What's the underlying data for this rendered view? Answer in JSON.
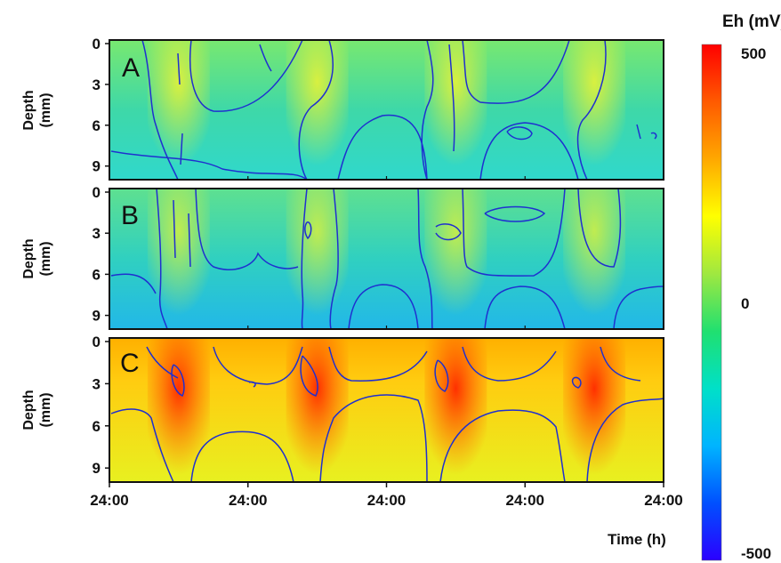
{
  "chart_data": {
    "type": "heatmap",
    "panels": [
      {
        "label": "A",
        "ylabel_line1": "Depth",
        "ylabel_line2": "(mm)",
        "ytick_labels": [
          "0",
          "3",
          "6",
          "9"
        ],
        "ylim": [
          0,
          10
        ],
        "approx_eh_range_mV": [
          -100,
          120
        ],
        "high_band_times_h": [
          12,
          36,
          60,
          84
        ],
        "contour_levels_mV": [
          0,
          50
        ]
      },
      {
        "label": "B",
        "ylabel_line1": "Depth",
        "ylabel_line2": "(mm)",
        "ytick_labels": [
          "0",
          "3",
          "6",
          "9"
        ],
        "ylim": [
          0,
          10
        ],
        "approx_eh_range_mV": [
          -150,
          80
        ],
        "high_band_times_h": [
          12,
          36,
          60,
          84
        ],
        "contour_levels_mV": [
          -50,
          0
        ]
      },
      {
        "label": "C",
        "ylabel_line1": "Depth",
        "ylabel_line2": "(mm)",
        "ytick_labels": [
          "0",
          "3",
          "6",
          "9"
        ],
        "ylim": [
          0,
          10
        ],
        "approx_eh_range_mV": [
          200,
          450
        ],
        "high_band_times_h": [
          12,
          36,
          60,
          84
        ],
        "contour_levels_mV": [
          300,
          380
        ]
      }
    ],
    "x_tick_labels": [
      "24:00",
      "24:00",
      "24:00",
      "24:00",
      "24:00"
    ],
    "x_ticks_h": [
      0,
      24,
      48,
      72,
      96
    ],
    "xlim": [
      0,
      96
    ],
    "xlabel": "Time (h)",
    "colorbar": {
      "title": "Eh (mV)",
      "tick_labels": [
        "500",
        "0",
        "-500"
      ],
      "tick_values": [
        500,
        0,
        -500
      ],
      "range": [
        -500,
        500
      ],
      "colormap": [
        "#2b00ff",
        "#0050ff",
        "#00b4ff",
        "#00e0c8",
        "#20e070",
        "#a0e840",
        "#ffff00",
        "#ffa800",
        "#ff5a00",
        "#ff0000"
      ]
    },
    "contour_color": "#1f2fd0"
  }
}
